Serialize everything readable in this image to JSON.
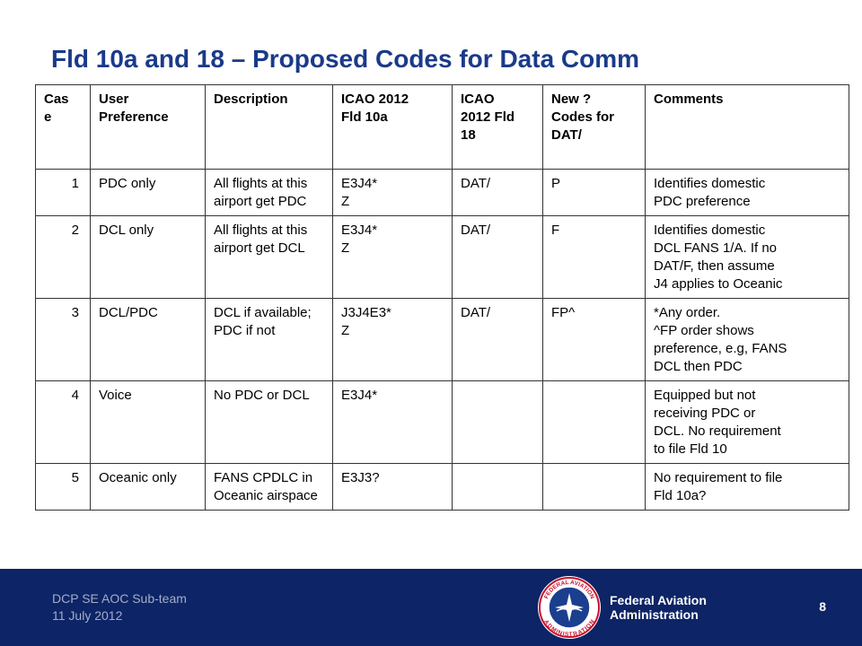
{
  "title": "Fld 10a and 18 – Proposed Codes for Data Comm",
  "table": {
    "headers": [
      [
        "Cas",
        "e"
      ],
      [
        "User",
        "Preference"
      ],
      [
        "Description"
      ],
      [
        "ICAO 2012",
        "Fld 10a"
      ],
      [
        "ICAO",
        "2012 Fld",
        "18"
      ],
      [
        "New ?",
        "Codes for",
        "DAT/"
      ],
      [
        "Comments"
      ]
    ],
    "rows": [
      {
        "case": "1",
        "preference": [
          "PDC only"
        ],
        "description": [
          "All flights at this",
          "airport get PDC"
        ],
        "fld10a": [
          "E3J4*",
          "Z"
        ],
        "fld18": [
          "DAT/"
        ],
        "codes": [
          "P"
        ],
        "comments": [
          "Identifies domestic",
          "PDC preference"
        ]
      },
      {
        "case": "2",
        "preference": [
          "DCL only"
        ],
        "description": [
          "All flights at this",
          "airport get DCL"
        ],
        "fld10a": [
          "E3J4*",
          "Z"
        ],
        "fld18": [
          "DAT/"
        ],
        "codes": [
          "F"
        ],
        "comments": [
          "Identifies domestic",
          "DCL FANS 1/A.  If no",
          "DAT/F, then assume",
          "J4 applies to Oceanic"
        ]
      },
      {
        "case": "3",
        "preference": [
          "DCL/PDC"
        ],
        "description": [
          "DCL if available;",
          "PDC if not"
        ],
        "fld10a": [
          "J3J4E3*",
          "Z"
        ],
        "fld18": [
          "DAT/"
        ],
        "codes": [
          "FP^"
        ],
        "comments": [
          "*Any order.",
          "^FP order shows",
          "preference, e.g, FANS",
          "DCL then PDC"
        ]
      },
      {
        "case": "4",
        "preference": [
          "Voice"
        ],
        "description": [
          "No PDC or DCL"
        ],
        "fld10a": [
          "E3J4*"
        ],
        "fld18": [],
        "codes": [],
        "comments": [
          "Equipped but not",
          "receiving PDC or",
          "DCL.  No requirement",
          "to file Fld 10"
        ]
      },
      {
        "case": "5",
        "preference": [
          "Oceanic only"
        ],
        "description": [
          "FANS CPDLC in",
          "Oceanic airspace"
        ],
        "fld10a": [
          "E3J3?"
        ],
        "fld18": [],
        "codes": [],
        "comments": [
          "No requirement to file",
          "Fld 10a?"
        ]
      }
    ]
  },
  "footer": {
    "team": "DCP SE AOC Sub-team",
    "date": "11 July 2012",
    "agency_line1": "Federal Aviation",
    "agency_line2": "Administration",
    "page_number": "8",
    "ghost_page_number": "8",
    "seal_icon": "faa-seal-icon",
    "seal_text_top": "FEDERAL AVIATION",
    "seal_text_bottom": "ADMINISTRATION",
    "colors": {
      "band": "#0d2466",
      "title": "#1a3a8a",
      "seal_red": "#c8102e",
      "seal_blue": "#1b3f8f"
    }
  }
}
